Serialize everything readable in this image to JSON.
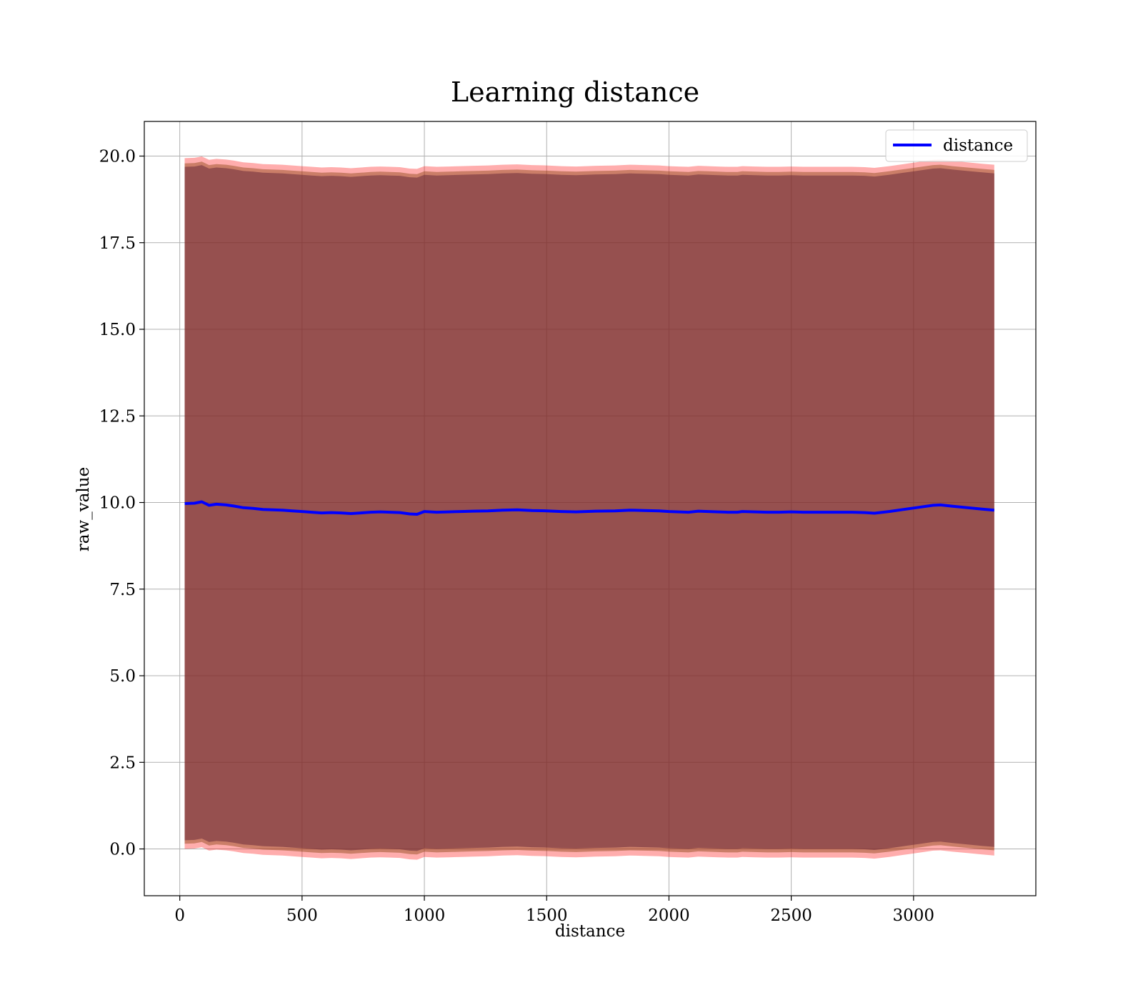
{
  "chart_data": {
    "type": "area",
    "title": "Learning distance",
    "xlabel": "distance",
    "ylabel": "raw_value",
    "xlim": [
      -145,
      3500
    ],
    "ylim": [
      -1.35,
      21.0
    ],
    "x_ticks": [
      0,
      500,
      1000,
      1500,
      2000,
      2500,
      3000
    ],
    "x_tick_labels": [
      "0",
      "500",
      "1000",
      "1500",
      "2000",
      "2500",
      "3000"
    ],
    "y_ticks": [
      0.0,
      2.5,
      5.0,
      7.5,
      10.0,
      12.5,
      15.0,
      17.5,
      20.0
    ],
    "y_tick_labels": [
      "0.0",
      "2.5",
      "5.0",
      "7.5",
      "10.0",
      "12.5",
      "15.0",
      "17.5",
      "20.0"
    ],
    "grid": true,
    "legend_position": "top-right",
    "colors": {
      "line": "#0000ff",
      "band_outer": "#ff0000",
      "band_inner": "#8b4513",
      "band_core": "#6b2a3a"
    },
    "series": [
      {
        "name": "distance",
        "x": [
          20,
          60,
          90,
          120,
          150,
          190,
          220,
          260,
          300,
          340,
          380,
          420,
          460,
          500,
          540,
          580,
          620,
          660,
          700,
          740,
          780,
          820,
          860,
          900,
          940,
          970,
          1000,
          1050,
          1100,
          1150,
          1200,
          1260,
          1320,
          1380,
          1440,
          1500,
          1560,
          1620,
          1700,
          1780,
          1840,
          1900,
          1960,
          2000,
          2040,
          2080,
          2120,
          2160,
          2200,
          2240,
          2280,
          2300,
          2350,
          2400,
          2450,
          2500,
          2550,
          2600,
          2650,
          2700,
          2750,
          2800,
          2840,
          2900,
          2960,
          3020,
          3080,
          3110,
          3160,
          3220,
          3280,
          3330
        ],
        "y": [
          9.97,
          9.98,
          10.02,
          9.92,
          9.95,
          9.93,
          9.9,
          9.85,
          9.83,
          9.8,
          9.79,
          9.78,
          9.76,
          9.74,
          9.72,
          9.7,
          9.71,
          9.7,
          9.68,
          9.7,
          9.72,
          9.73,
          9.72,
          9.71,
          9.67,
          9.66,
          9.74,
          9.72,
          9.73,
          9.74,
          9.75,
          9.76,
          9.78,
          9.79,
          9.77,
          9.76,
          9.74,
          9.73,
          9.75,
          9.76,
          9.78,
          9.77,
          9.76,
          9.74,
          9.73,
          9.72,
          9.75,
          9.74,
          9.73,
          9.72,
          9.72,
          9.74,
          9.73,
          9.72,
          9.72,
          9.73,
          9.72,
          9.72,
          9.72,
          9.72,
          9.72,
          9.71,
          9.69,
          9.74,
          9.8,
          9.86,
          9.92,
          9.93,
          9.89,
          9.85,
          9.81,
          9.78
        ]
      }
    ],
    "bands": {
      "outer_offset": 9.97,
      "inner_offset": 9.82,
      "core_offset": 9.72
    }
  }
}
